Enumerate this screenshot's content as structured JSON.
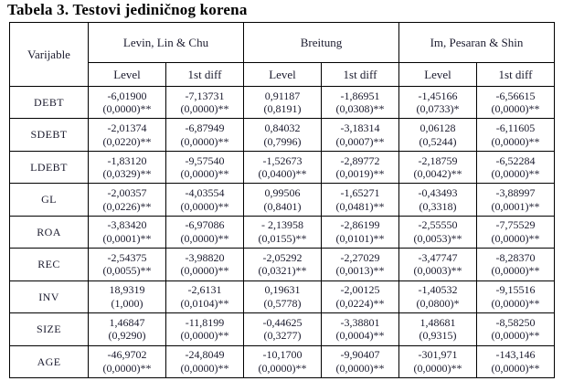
{
  "title": "Tabela 3. Testovi jediničnog korena",
  "colors": {
    "background": "#ffffff",
    "border": "#000000",
    "text": "#1b1b2e",
    "title_text": "#000000"
  },
  "table": {
    "variable_header": "Varijable",
    "groups": [
      {
        "label": "Levin, Lin & Chu"
      },
      {
        "label": "Breitung"
      },
      {
        "label": "Im, Pesaran & Shin"
      }
    ],
    "sub_headers": [
      "Level",
      "1st diff",
      "Level",
      "1st diff",
      "Level",
      "1st diff"
    ],
    "rows": [
      {
        "variable": "DEBT",
        "cells": [
          [
            "-6,01900",
            "(0,0000)**"
          ],
          [
            "-7,13731",
            "(0,0000)**"
          ],
          [
            "0,91187",
            "(0,8191)"
          ],
          [
            "-1,86951",
            "(0,0308)**"
          ],
          [
            "-1,45166",
            "(0,0733)*"
          ],
          [
            "-6,56615",
            "(0,0000)**"
          ]
        ]
      },
      {
        "variable": "SDEBT",
        "cells": [
          [
            "-2,01374",
            "(0,0220)**"
          ],
          [
            "-6,87949",
            "(0,0000)**"
          ],
          [
            "0,84032",
            "(0,7996)"
          ],
          [
            "-3,18314",
            "(0,0007)**"
          ],
          [
            "0,06128",
            "(0,5244)"
          ],
          [
            "-6,11605",
            "(0,0000)**"
          ]
        ]
      },
      {
        "variable": "LDEBT",
        "cells": [
          [
            "-1,83120",
            "(0,0329)**"
          ],
          [
            "-9,57540",
            "(0,0000)**"
          ],
          [
            "-1,52673",
            "(0,0400)**"
          ],
          [
            "-2,89772",
            "(0,0019)**"
          ],
          [
            "-2,18759",
            "(0,0042)**"
          ],
          [
            "-6,52284",
            "(0,0000)**"
          ]
        ]
      },
      {
        "variable": "GL",
        "cells": [
          [
            "-2,00357",
            "(0,0226)**"
          ],
          [
            "-4,03554",
            "(0,0000)**"
          ],
          [
            "0,99506",
            "(0,8401)"
          ],
          [
            "-1,65271",
            "(0,0481)**"
          ],
          [
            "-0,43493",
            "(0,3318)"
          ],
          [
            "-3,88997",
            "(0,0001)**"
          ]
        ]
      },
      {
        "variable": "ROA",
        "cells": [
          [
            "-3,83420",
            "(0,0001)**"
          ],
          [
            "-6,97086",
            "(0,0000)**"
          ],
          [
            "- 2,13958",
            "(0,0155)**"
          ],
          [
            "-2,86199",
            "(0,0101)**"
          ],
          [
            "-2,55550",
            "(0,0053)**"
          ],
          [
            "-7,75529",
            "(0,0000)**"
          ]
        ]
      },
      {
        "variable": "REC",
        "cells": [
          [
            "-2,54375",
            "(0,0055)**"
          ],
          [
            "-3,98820",
            "(0,0000)**"
          ],
          [
            "-2,05292",
            "(0,0321)**"
          ],
          [
            "-2,27029",
            "(0,0013)**"
          ],
          [
            "-3,47747",
            "(0,0003)**"
          ],
          [
            "-8,28370",
            "(0,0000)**"
          ]
        ]
      },
      {
        "variable": "INV",
        "cells": [
          [
            "18,9319",
            "(1,000)"
          ],
          [
            "-2,6131",
            "(0,0104)**"
          ],
          [
            "0,19631",
            "(0,5778)"
          ],
          [
            "-2,00125",
            "(0,0224)**"
          ],
          [
            "-1,40532",
            "(0,0800)*"
          ],
          [
            "-9,15516",
            "(0,0000)**"
          ]
        ]
      },
      {
        "variable": "SIZE",
        "cells": [
          [
            "1,46847",
            "(0,9290)"
          ],
          [
            "-11,8199",
            "(0,0000)**"
          ],
          [
            "-0,44625",
            "(0,3277)"
          ],
          [
            "-3,38801",
            "(0,0004)**"
          ],
          [
            "1,48681",
            "(0,9315)"
          ],
          [
            "-8,58250",
            "(0,0000)**"
          ]
        ]
      },
      {
        "variable": "AGE",
        "cells": [
          [
            "-46,9702",
            "(0,0000)**"
          ],
          [
            "-24,8049",
            "(0,0000)**"
          ],
          [
            "-10,1700",
            "(0,0000)**"
          ],
          [
            "-9,90407",
            "(0,0000)**"
          ],
          [
            "-301,971",
            "(0,0000)**"
          ],
          [
            "-143,146",
            "(0,0000)**"
          ]
        ]
      }
    ]
  }
}
